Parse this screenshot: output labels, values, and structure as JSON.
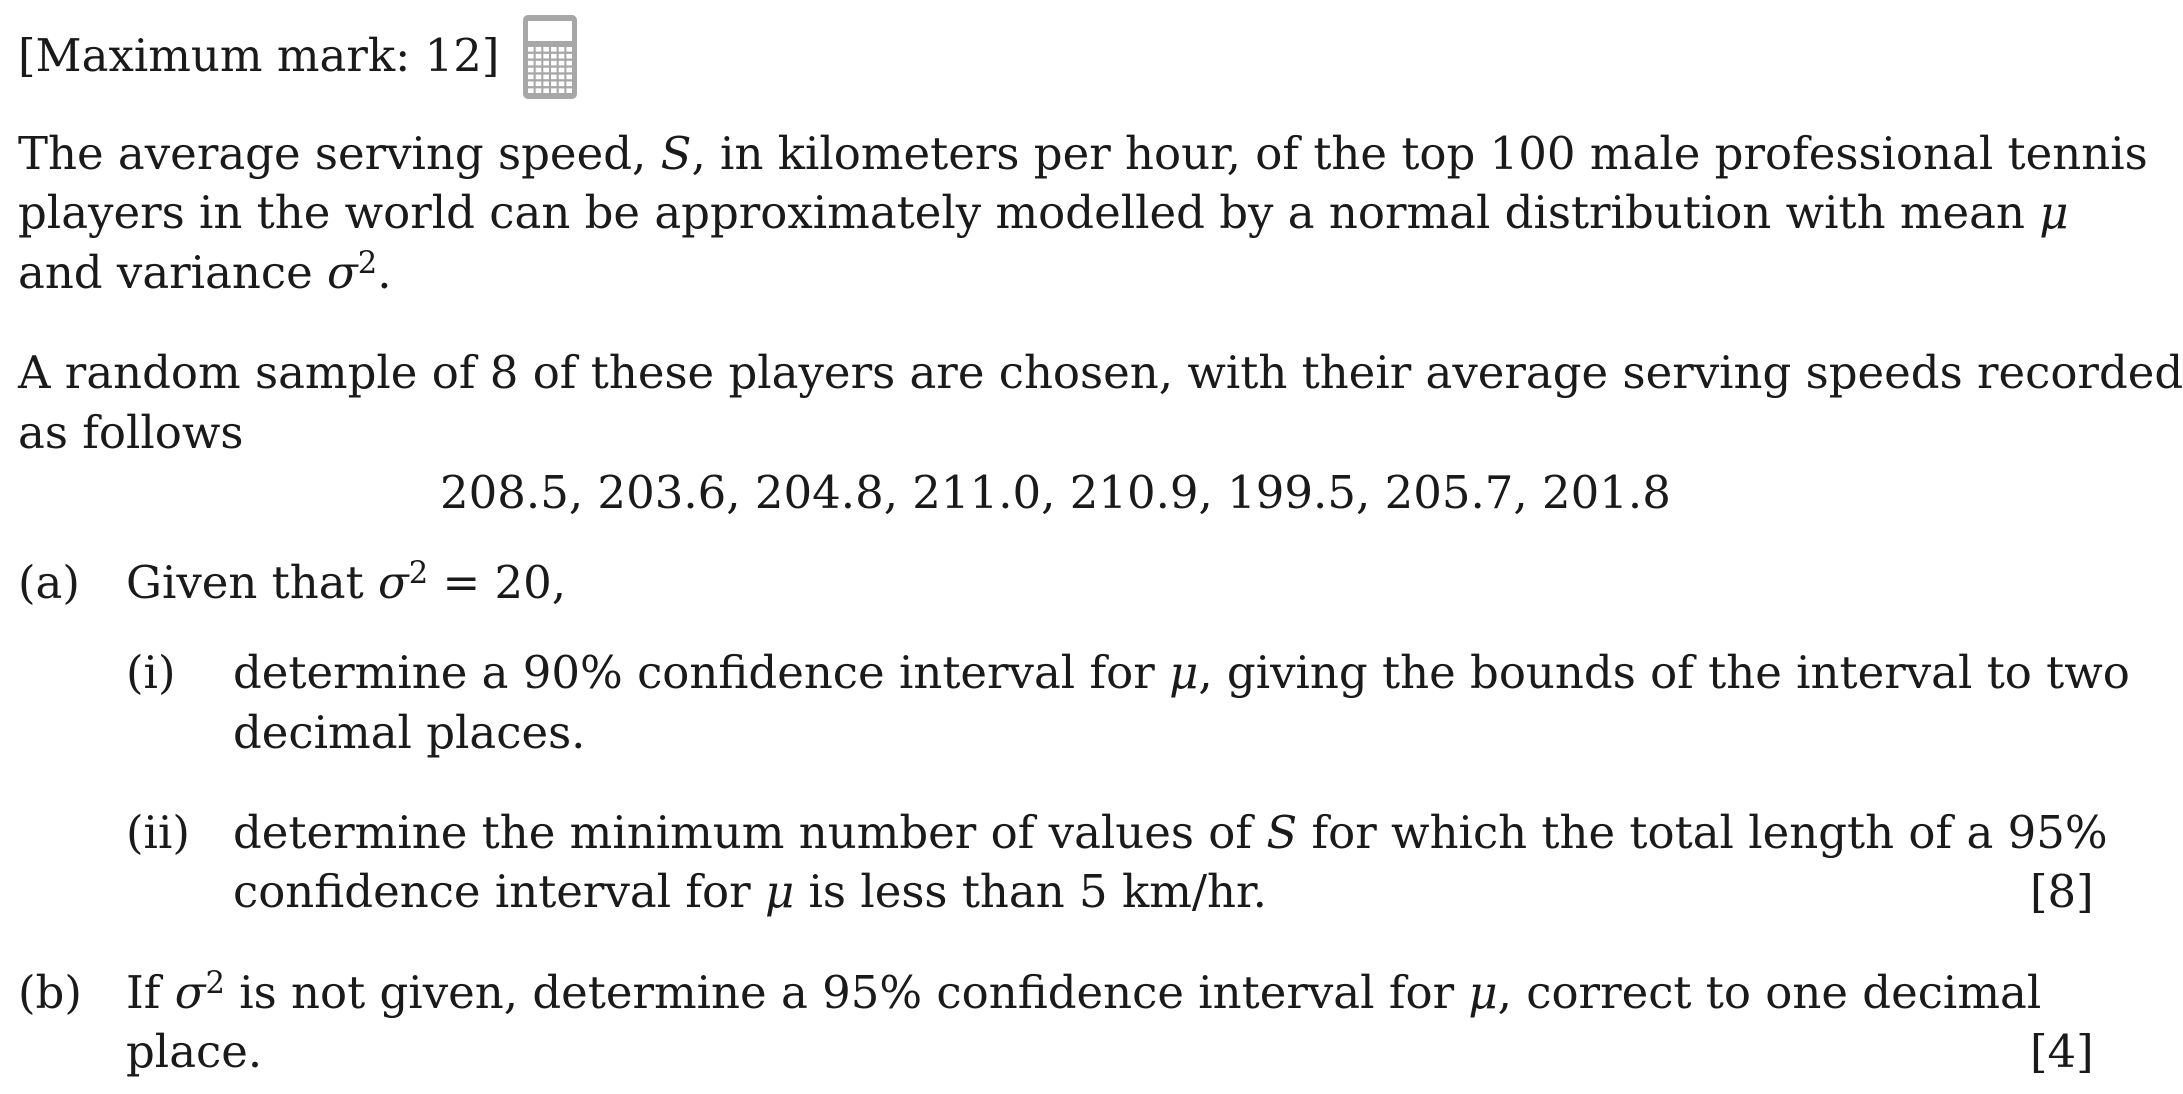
{
  "header": {
    "max_mark": "[Maximum mark: 12]",
    "calculator_icon": "calculator-icon"
  },
  "intro": {
    "line1": "The average serving speed, S, in kilometers per hour, of the top 100 male professional tennis",
    "line2": "players in the world can be approximately modelled by a normal distribution with mean μ",
    "line3": "and variance σ2."
  },
  "sample": {
    "line1": "A random sample of 8 of these players are chosen, with their average serving speeds recorded",
    "line2": "as follows",
    "values": "208.5, 203.6, 204.8, 211.0, 210.9, 199.5, 205.7, 201.8"
  },
  "part_a": {
    "label": "(a)",
    "text": "Given that σ2 = 20,",
    "sub_i": {
      "label": "(i)",
      "line1": "determine a 90% confidence interval for μ, giving the bounds of the interval to two",
      "line2": "decimal places."
    },
    "sub_ii": {
      "label": "(ii)",
      "line1": "determine the minimum number of values of S for which the total length of a 95%",
      "line2": "confidence interval for μ is less than 5 km/hr."
    },
    "marks": "[8]"
  },
  "part_b": {
    "label": "(b)",
    "line1": "If σ2 is not given, determine a 95% confidence interval for μ, correct to one decimal",
    "line2": "place.",
    "marks": "[4]"
  }
}
